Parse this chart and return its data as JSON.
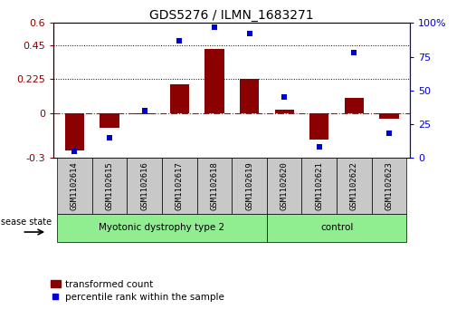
{
  "title": "GDS5276 / ILMN_1683271",
  "categories": [
    "GSM1102614",
    "GSM1102615",
    "GSM1102616",
    "GSM1102617",
    "GSM1102618",
    "GSM1102619",
    "GSM1102620",
    "GSM1102621",
    "GSM1102622",
    "GSM1102623"
  ],
  "bar_values": [
    -0.25,
    -0.1,
    -0.01,
    0.19,
    0.43,
    0.225,
    0.02,
    -0.18,
    0.1,
    -0.04
  ],
  "percentile_values": [
    5,
    15,
    35,
    87,
    97,
    92,
    45,
    8,
    78,
    18
  ],
  "bar_color": "#8B0000",
  "dot_color": "#0000CD",
  "ylim_left": [
    -0.3,
    0.6
  ],
  "ylim_right": [
    0,
    100
  ],
  "yticks_left": [
    -0.3,
    0,
    0.225,
    0.45,
    0.6
  ],
  "yticks_right": [
    0,
    25,
    50,
    75,
    100
  ],
  "yticklabels_left": [
    "-0.3",
    "0",
    "0.225",
    "0.45",
    "0.6"
  ],
  "yticklabels_right": [
    "0",
    "25",
    "50",
    "75",
    "100%"
  ],
  "dotted_lines": [
    0.225,
    0.45
  ],
  "group1_label": "Myotonic dystrophy type 2",
  "group1_count": 6,
  "group2_label": "control",
  "group2_count": 4,
  "disease_state_label": "disease state",
  "legend_bar_label": "transformed count",
  "legend_dot_label": "percentile rank within the sample",
  "group1_color": "#90EE90",
  "group2_color": "#90EE90",
  "bar_color_legend": "#CC0000",
  "dot_color_legend": "#0000CC",
  "label_box_color": "#C8C8C8",
  "title_fontsize": 10,
  "axis_fontsize": 8,
  "label_fontsize": 6.5,
  "group_fontsize": 7.5
}
